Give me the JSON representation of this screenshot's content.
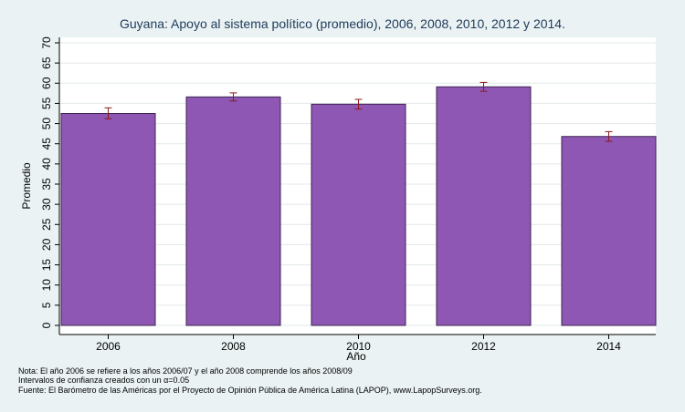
{
  "chart_data": {
    "type": "bar",
    "title": "Guyana: Apoyo al sistema político (promedio), 2006, 2008, 2010, 2012 y 2014.",
    "xlabel": "Año",
    "ylabel": "Promedio",
    "categories": [
      "2006",
      "2008",
      "2010",
      "2012",
      "2014"
    ],
    "values": [
      52.5,
      56.6,
      54.8,
      59.1,
      46.8
    ],
    "error_low": [
      51.2,
      55.6,
      53.6,
      58.0,
      45.6
    ],
    "error_high": [
      53.9,
      57.6,
      56.0,
      60.2,
      48.0
    ],
    "yticks": [
      "0",
      "5",
      "10",
      "15",
      "20",
      "25",
      "30",
      "35",
      "40",
      "45",
      "50",
      "55",
      "60",
      "65",
      "70"
    ],
    "ylim": [
      0,
      70
    ],
    "grid": true,
    "legend": "none",
    "colors": {
      "bar": "#8e57b4",
      "bar_edge": "#3d2352",
      "error": "#8b1a1a",
      "grid": "#e2e8ea",
      "plot_bg": "#ffffff",
      "page_bg": "#eaf2f3"
    }
  },
  "notes": {
    "line1": "Nota: El año 2006 se refiere a los años 2006/07 y el año 2008 comprende los años 2008/09",
    "line2": "Intervalos de confianza creados con un α=0.05",
    "line3": "Fuente: El Barómetro de las Américas por el Proyecto de Opinión Pública de América Latina (LAPOP), www.LapopSurveys.org."
  }
}
